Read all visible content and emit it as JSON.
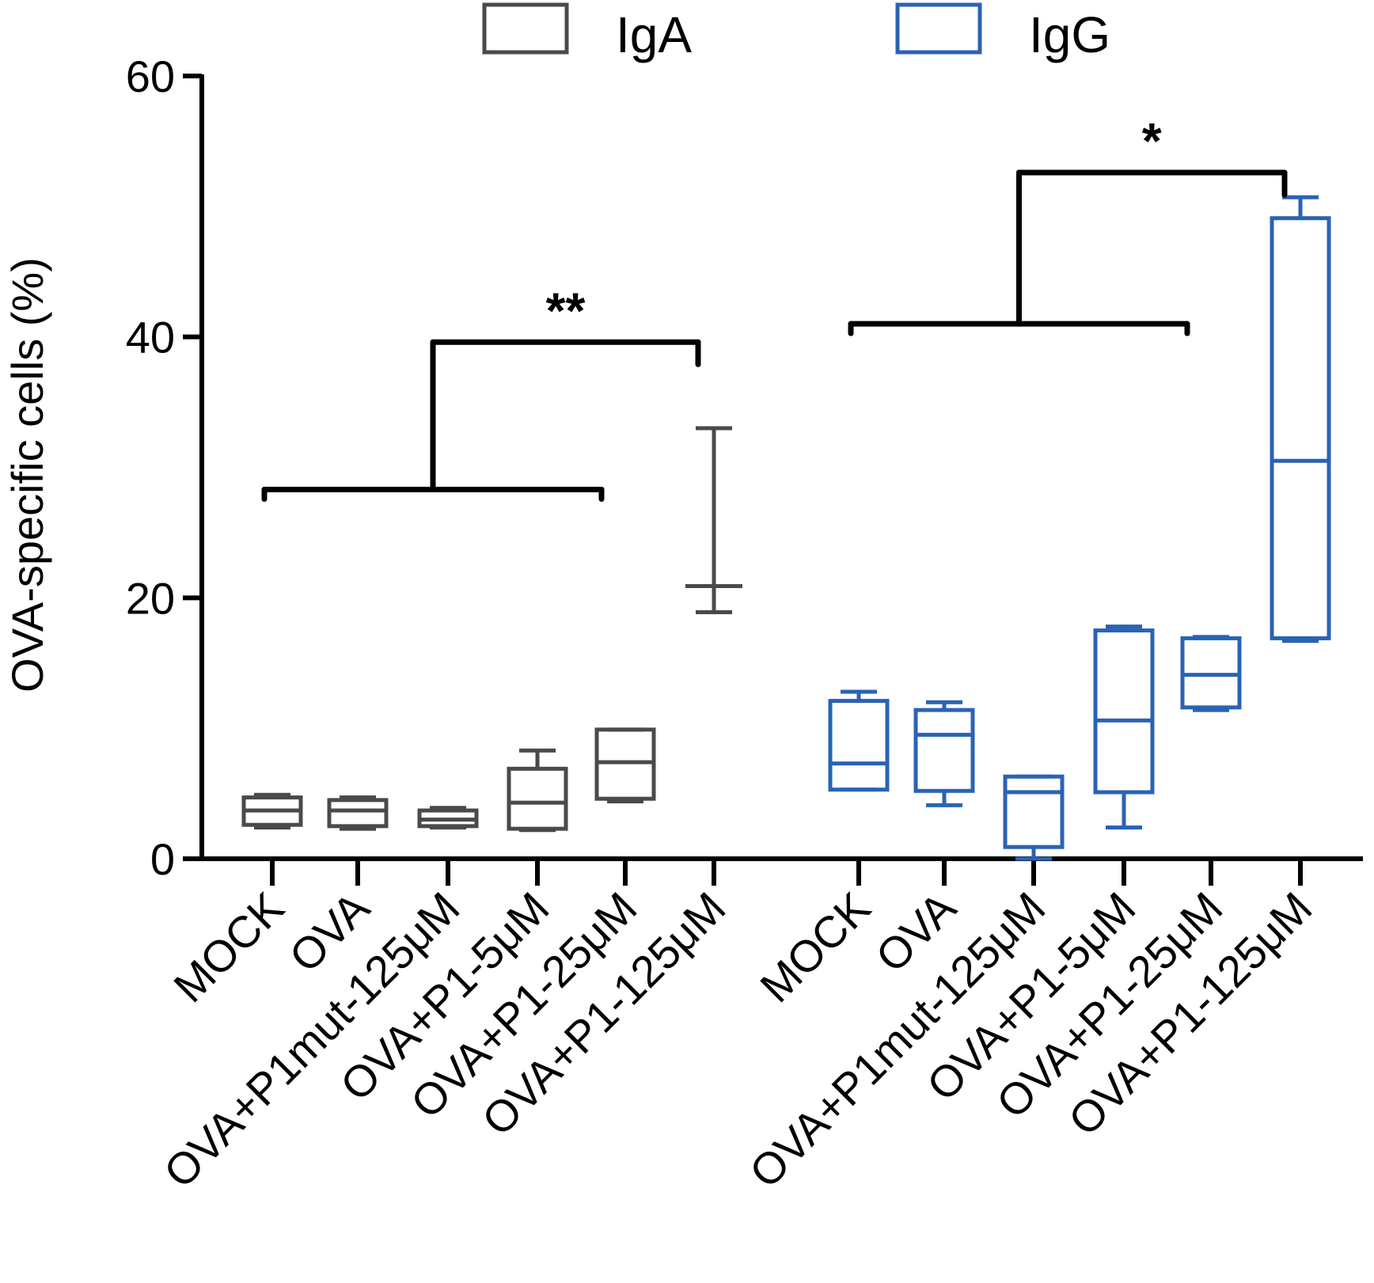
{
  "chart_data": {
    "type": "box",
    "ylabel": "OVA-specific cells (%)",
    "ylim": [
      0,
      60
    ],
    "yticks": [
      "0",
      "20",
      "40",
      "60"
    ],
    "legend": {
      "position": "top",
      "items": [
        {
          "label": "IgA",
          "color": "#4a4a4a"
        },
        {
          "label": "IgG",
          "color": "#2a63b4"
        }
      ]
    },
    "categories": [
      "MOCK",
      "OVA",
      "OVA+P1mut-125μM",
      "OVA+P1-5μM",
      "OVA+P1-25μM",
      "OVA+P1-125μM"
    ],
    "series": [
      {
        "name": "IgA",
        "color": "#4a4a4a",
        "boxes": [
          {
            "category": "MOCK",
            "min": 2.4,
            "q1": 2.6,
            "median": 3.7,
            "q3": 4.7,
            "max": 4.9
          },
          {
            "category": "OVA",
            "min": 2.3,
            "q1": 2.5,
            "median": 3.7,
            "q3": 4.5,
            "max": 4.7
          },
          {
            "category": "OVA+P1mut-125μM",
            "min": 2.4,
            "q1": 2.5,
            "median": 3.0,
            "q3": 3.7,
            "max": 3.9
          },
          {
            "category": "OVA+P1-5μM",
            "min": 2.2,
            "q1": 2.3,
            "median": 4.3,
            "q3": 6.9,
            "max": 8.3
          },
          {
            "category": "OVA+P1-25μM",
            "min": 4.4,
            "q1": 4.6,
            "median": 7.4,
            "q3": 9.9,
            "max": 9.9
          },
          {
            "category": "OVA+P1-125μM",
            "min": 18.9,
            "q1": 20.9,
            "median": 20.9,
            "q3": 20.9,
            "max": 33.0
          }
        ]
      },
      {
        "name": "IgG",
        "color": "#2a63b4",
        "boxes": [
          {
            "category": "MOCK",
            "min": 5.3,
            "q1": 5.3,
            "median": 7.3,
            "q3": 12.1,
            "max": 12.8
          },
          {
            "category": "OVA",
            "min": 4.1,
            "q1": 5.2,
            "median": 9.5,
            "q3": 11.4,
            "max": 12.0
          },
          {
            "category": "OVA+P1mut-125μM",
            "min": 0.0,
            "q1": 0.9,
            "median": 5.1,
            "q3": 6.3,
            "max": 6.3
          },
          {
            "category": "OVA+P1-5μM",
            "min": 2.4,
            "q1": 5.1,
            "median": 10.6,
            "q3": 17.5,
            "max": 17.8
          },
          {
            "category": "OVA+P1-25μM",
            "min": 11.4,
            "q1": 11.6,
            "median": 14.1,
            "q3": 16.9,
            "max": 17.0
          },
          {
            "category": "OVA+P1-125μM",
            "min": 16.7,
            "q1": 16.9,
            "median": 30.5,
            "q3": 49.1,
            "max": 50.7
          }
        ]
      }
    ],
    "annotations": [
      {
        "label": "**",
        "series": "IgA",
        "left_group_from": "MOCK",
        "left_group_to": "OVA+P1-25μM",
        "left_level": 28.3,
        "right_target": "OVA+P1-125μM",
        "top_level": 39.6,
        "right_drop": 38.5
      },
      {
        "label": "*",
        "series": "IgG",
        "left_group_from": "MOCK",
        "left_group_to": "OVA+P1-25μM",
        "left_level": 41.0,
        "right_target": "OVA+P1-125μM",
        "top_level": 52.6,
        "right_drop": 51.5
      }
    ]
  }
}
